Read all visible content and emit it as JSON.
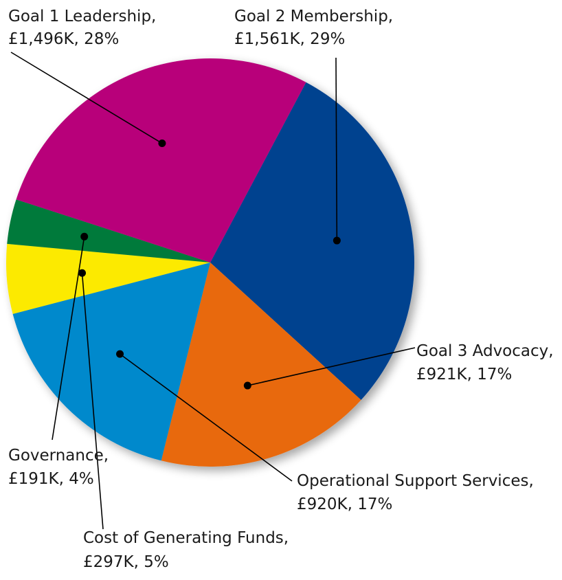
{
  "chart_data": {
    "type": "pie",
    "title": "",
    "legend": "none",
    "slices": [
      {
        "name": "Goal 2 Membership",
        "value": 1561,
        "amount_label": "£1,561K",
        "percent": 29,
        "color": "#00428f"
      },
      {
        "name": "Goal 3 Advocacy",
        "value": 921,
        "amount_label": "£921K",
        "percent": 17,
        "color": "#e8690f"
      },
      {
        "name": "Operational Support Services",
        "value": 920,
        "amount_label": "£920K",
        "percent": 17,
        "color": "#0289cc"
      },
      {
        "name": "Cost of Generating Funds",
        "value": 297,
        "amount_label": "£297K",
        "percent": 5,
        "color": "#fcea00"
      },
      {
        "name": "Governance",
        "value": 191,
        "amount_label": "£191K",
        "percent": 4,
        "color": "#007a3a"
      },
      {
        "name": "Goal 1 Leadership",
        "value": 1496,
        "amount_label": "£1,496K",
        "percent": 28,
        "color": "#b8007a"
      }
    ],
    "labels": [
      {
        "line1": "Goal 2 Membership,",
        "line2": "£1,561K, 29%"
      },
      {
        "line1": "Goal 3 Advocacy,",
        "line2": "£921K, 17%"
      },
      {
        "line1": "Operational Support Services,",
        "line2": "£920K, 17%"
      },
      {
        "line1": "Cost of Generating Funds,",
        "line2": "£297K, 5%"
      },
      {
        "line1": "Governance,",
        "line2": "£191K, 4%"
      },
      {
        "line1": "Goal 1 Leadership,",
        "line2": "£1,496K, 28%"
      }
    ]
  }
}
